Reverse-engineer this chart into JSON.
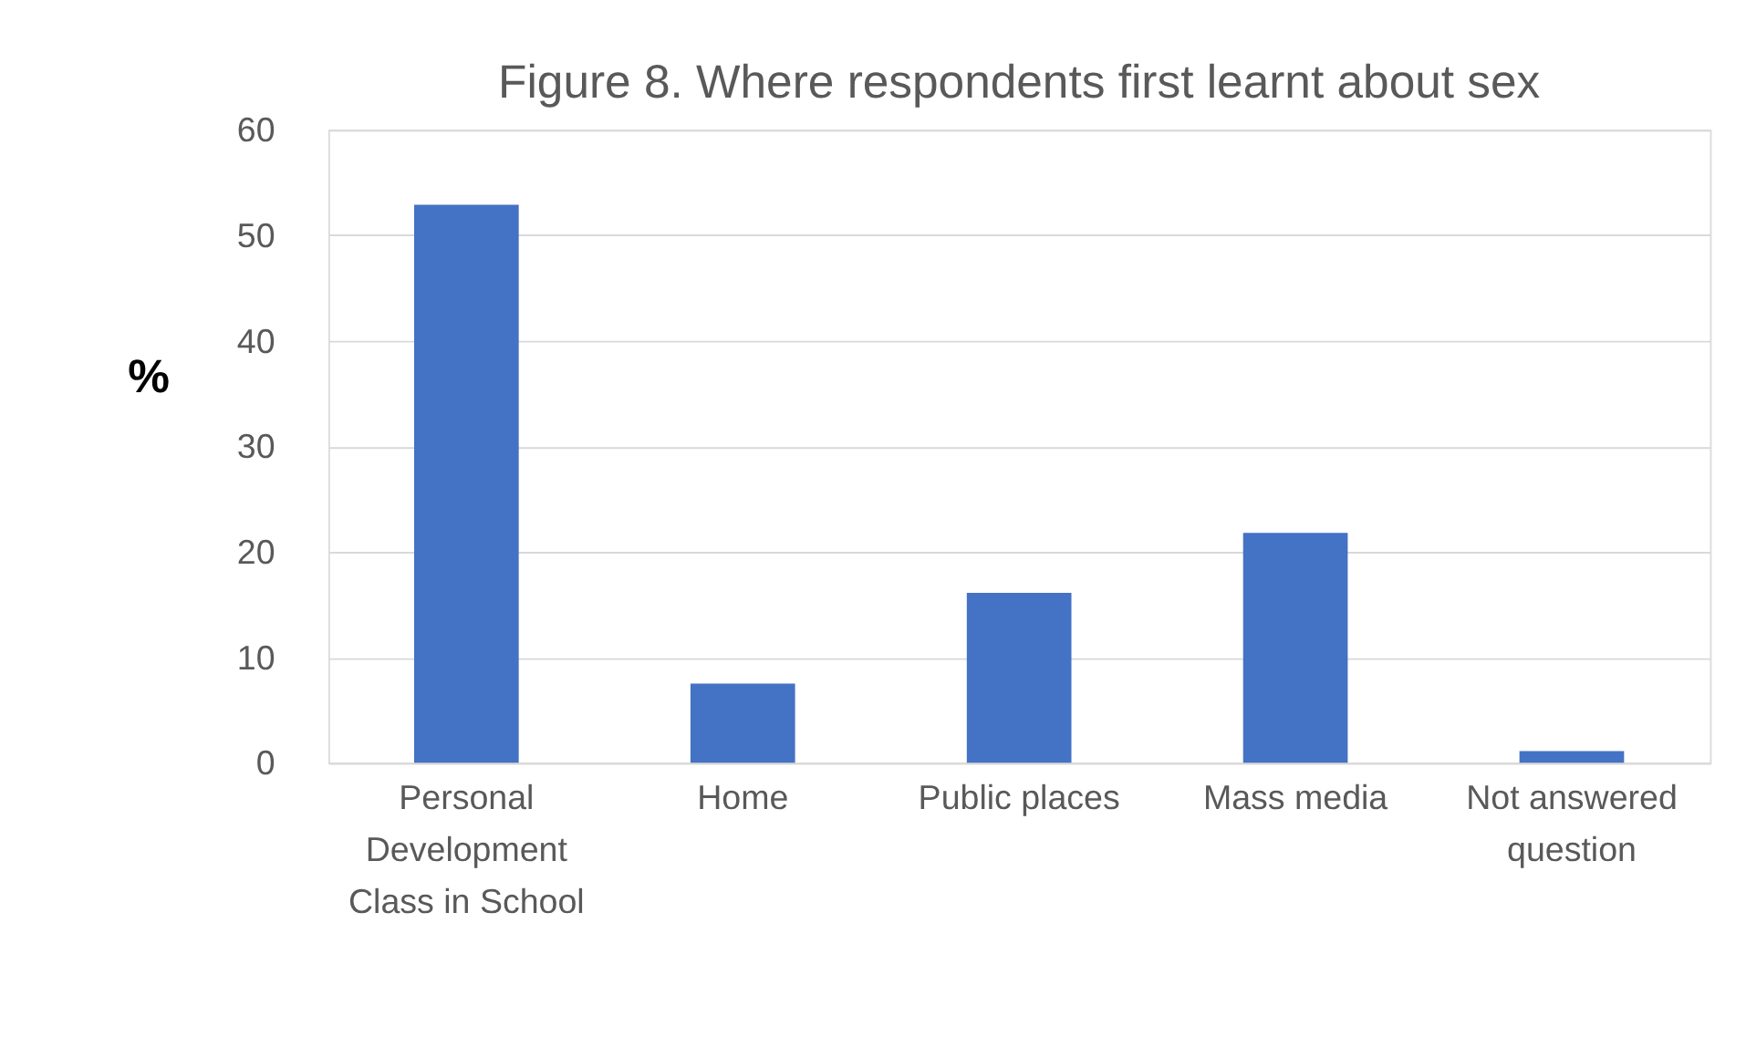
{
  "chart_data": {
    "type": "bar",
    "title": "Figure 8. Where respondents first learnt about sex",
    "ylabel": "%",
    "categories": [
      "Personal Development Class in School",
      "Home",
      "Public places",
      "Mass media",
      "Not answered question"
    ],
    "values": [
      52.9,
      7.5,
      16.1,
      21.8,
      1.1
    ],
    "color": "#4472c4",
    "ylim": [
      0,
      60
    ],
    "yticks": [
      0,
      10,
      20,
      30,
      40,
      50,
      60
    ],
    "grid": "y"
  }
}
